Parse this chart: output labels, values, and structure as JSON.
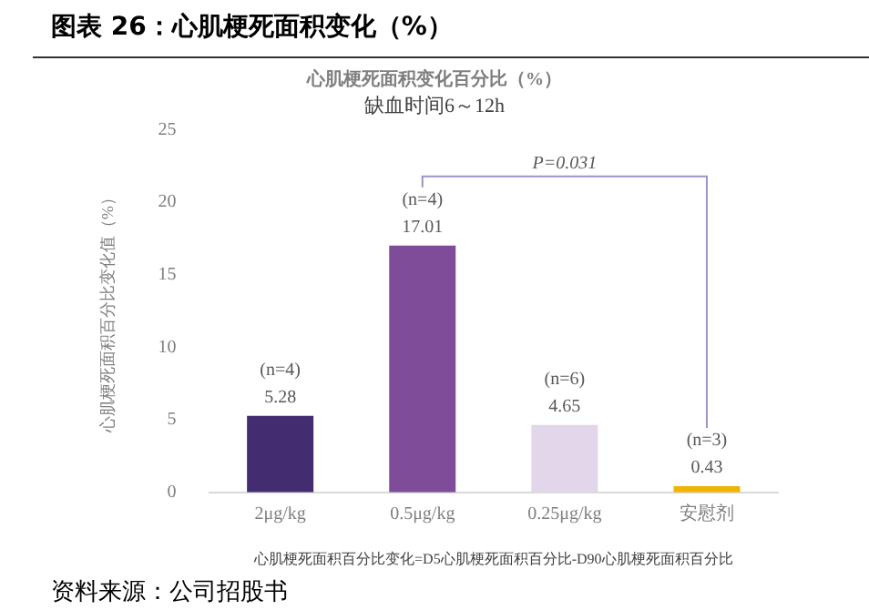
{
  "chart_data": {
    "type": "bar",
    "title": "心肌梗死面积变化百分比（%）",
    "subtitle": "缺血时间6～12h",
    "ylabel": "心肌梗死面积百分比变化值（%）",
    "xlabel": "心肌梗死面积百分比变化=D5心肌梗死面积百分比-D90心肌梗死面积百分比",
    "categories": [
      "2μg/kg",
      "0.5μg/kg",
      "0.25μg/kg",
      "安慰剂"
    ],
    "values": [
      5.28,
      17.01,
      4.65,
      0.43
    ],
    "colors": [
      "#432c70",
      "#7f4c9a",
      "#e2d6ea",
      "#f0b400"
    ],
    "data_labels": true,
    "ylim": [
      0,
      25
    ],
    "yticks": [
      0,
      5,
      10,
      15,
      20,
      25
    ],
    "grid": false,
    "legend": false,
    "annotations": [
      {
        "text": "(n=4)",
        "x": "2μg/kg",
        "y": 5.28
      },
      {
        "text": "(n=4)",
        "x": "0.5μg/kg",
        "y": 17.01
      },
      {
        "text": "(n=6)",
        "x": "0.25μg/kg",
        "y": 4.65
      },
      {
        "text": "(n=3)",
        "x": "安慰剂",
        "y": 0.43
      },
      "P=0.031",
      "图表 26：心肌梗死面积变化（%）",
      "资料来源：公司招股书"
    ]
  }
}
